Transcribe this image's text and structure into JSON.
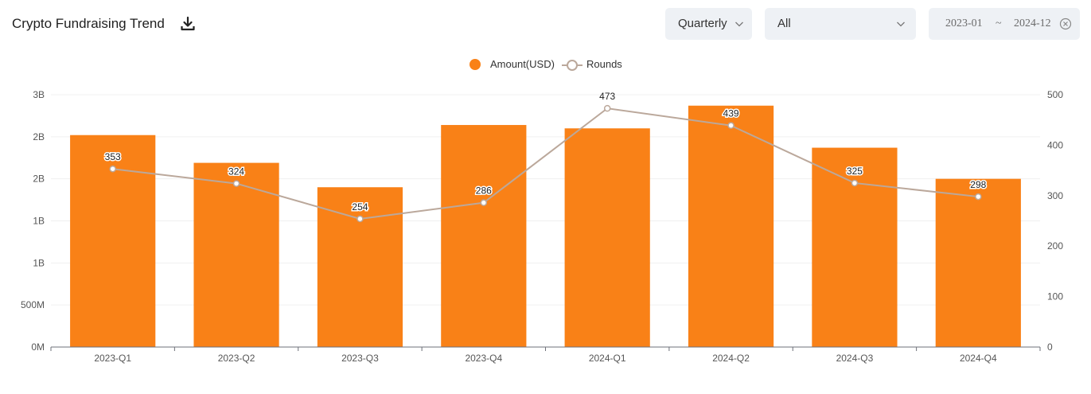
{
  "header": {
    "title": "Crypto Fundraising Trend",
    "period_select": {
      "value": "Quarterly"
    },
    "category_select": {
      "value": "All"
    },
    "date_range": {
      "start": "2023-01",
      "separator": "~",
      "end": "2024-12"
    }
  },
  "icons": {
    "download": "download-icon",
    "chevron": "chevron-down-icon",
    "clear": "close-icon"
  },
  "colors": {
    "bar": "#f98117",
    "line": "#bba89b",
    "grid": "#f0f0f0",
    "axis": "#6e7079"
  },
  "chart_data": {
    "type": "bar",
    "categories": [
      "2023-Q1",
      "2023-Q2",
      "2023-Q3",
      "2023-Q4",
      "2024-Q1",
      "2024-Q2",
      "2024-Q3",
      "2024-Q4"
    ],
    "series": [
      {
        "name": "Amount(USD)",
        "type": "bar",
        "axis": "left",
        "values": [
          2520000000,
          2190000000,
          1900000000,
          2640000000,
          2600000000,
          2870000000,
          2370000000,
          2000000000
        ]
      },
      {
        "name": "Rounds",
        "type": "line",
        "axis": "right",
        "values": [
          353,
          324,
          254,
          286,
          473,
          439,
          325,
          298
        ]
      }
    ],
    "y_left": {
      "ticks": [
        "0M",
        "500M",
        "1B",
        "1B",
        "2B",
        "2B",
        "3B"
      ],
      "range": [
        0,
        3000000000
      ]
    },
    "y_right": {
      "ticks": [
        "0",
        "100",
        "200",
        "300",
        "400",
        "500"
      ],
      "range": [
        0,
        500
      ]
    },
    "legend": "top-center",
    "grid": true
  }
}
